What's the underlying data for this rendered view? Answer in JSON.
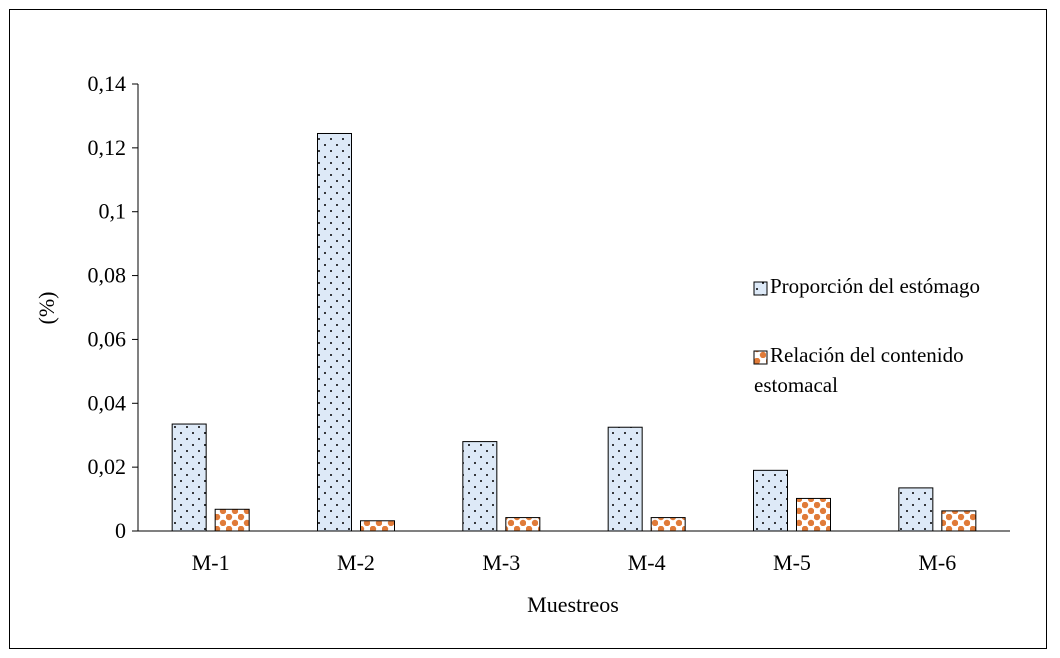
{
  "chart_data": {
    "type": "bar",
    "categories": [
      "M-1",
      "M-2",
      "M-3",
      "M-4",
      "M-5",
      "M-6"
    ],
    "series": [
      {
        "name": "Proporción del estómago",
        "values": [
          0.0335,
          0.1245,
          0.028,
          0.0325,
          0.019,
          0.0135
        ],
        "fill": "#dde9f7",
        "stroke": "#000000",
        "pattern": "dots"
      },
      {
        "name": "Relación del contenido estomacal",
        "values": [
          0.0068,
          0.0032,
          0.0042,
          0.0042,
          0.0102,
          0.0063
        ],
        "fill": "#ffffff",
        "stroke": "#000000",
        "pattern": "orange-checker",
        "accent": "#e07b39"
      }
    ],
    "ylim": [
      0,
      0.14
    ],
    "yticks": [
      "0",
      "0,02",
      "0,04",
      "0,06",
      "0,08",
      "0,1",
      "0,12",
      "0,14"
    ],
    "ylabel": "(%)",
    "xlabel": "Muestreos",
    "legend_position": "right",
    "grid": false
  }
}
